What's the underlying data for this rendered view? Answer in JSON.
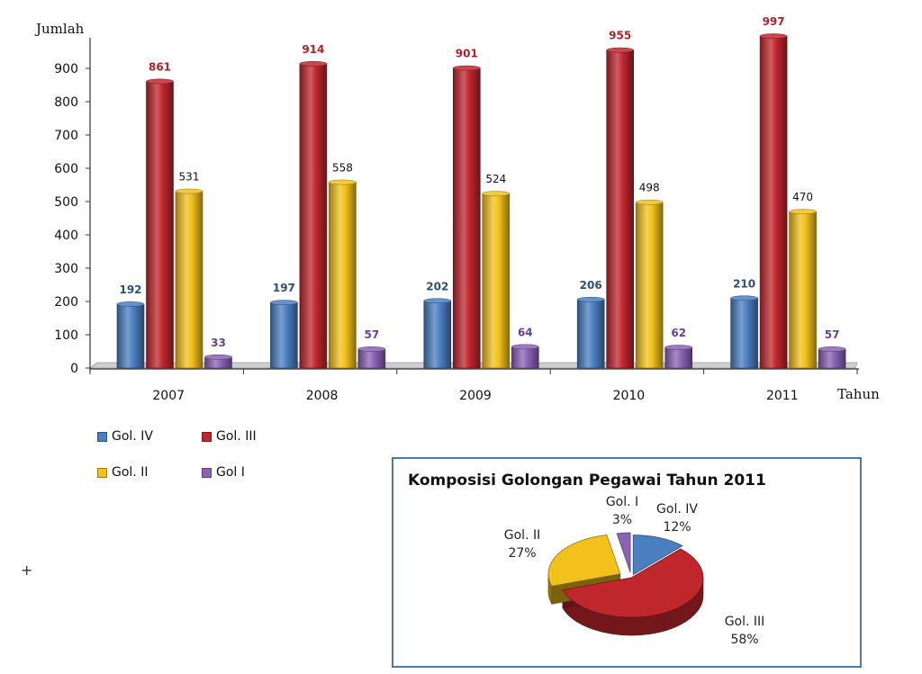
{
  "chart_data": [
    {
      "type": "bar",
      "ylabel": "Jumlah",
      "xlabel": "Tahun",
      "ylim": [
        0,
        1000
      ],
      "yticks": [
        0,
        100,
        200,
        300,
        400,
        500,
        600,
        700,
        800,
        900
      ],
      "categories": [
        "2007",
        "2008",
        "2009",
        "2010",
        "2011"
      ],
      "series": [
        {
          "name": "Gol. IV",
          "color": "#4a7fc1",
          "label_color": "#2b4f7a",
          "values": [
            192,
            197,
            202,
            206,
            210
          ]
        },
        {
          "name": "Gol. III",
          "color": "#c0272d",
          "label_color": "#b22028",
          "values": [
            861,
            914,
            901,
            955,
            997
          ]
        },
        {
          "name": "Gol. II",
          "color": "#f2c11b",
          "label_color": "#111111",
          "values": [
            531,
            558,
            524,
            498,
            470
          ]
        },
        {
          "name": "Gol I",
          "color": "#8a63b5",
          "label_color": "#6a3f99",
          "values": [
            33,
            57,
            64,
            62,
            57
          ]
        }
      ],
      "legend_position": "bottom-left",
      "grid": false
    },
    {
      "type": "pie",
      "title": "Komposisi Golongan Pegawai Tahun 2011",
      "slices": [
        {
          "name": "Gol. IV",
          "percent": 12,
          "percent_label": "12%",
          "color": "#4a7fc1"
        },
        {
          "name": "Gol. III",
          "percent": 58,
          "percent_label": "58%",
          "color": "#c0272d"
        },
        {
          "name": "Gol. II",
          "percent": 27,
          "percent_label": "27%",
          "color": "#f2c11b"
        },
        {
          "name": "Gol. I",
          "percent": 3,
          "percent_label": "3%",
          "color": "#8a63b5"
        }
      ]
    }
  ],
  "misc": {
    "plus_mark": "+"
  }
}
